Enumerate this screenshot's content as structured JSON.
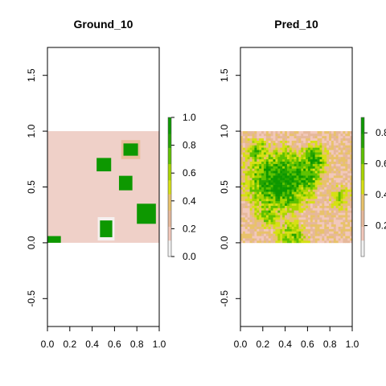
{
  "chart_data": [
    {
      "type": "heatmap",
      "title": "Ground_10",
      "xlabel": "",
      "ylabel": "",
      "xlim": [
        0,
        1
      ],
      "ylim": [
        -0.75,
        1.75
      ],
      "x_ticks": [
        "0.0",
        "0.2",
        "0.4",
        "0.6",
        "0.8",
        "1.0"
      ],
      "y_ticks": [
        "-0.5",
        "0.0",
        "0.5",
        "1.0",
        "1.5"
      ],
      "colorbar": {
        "range": [
          0,
          1
        ],
        "ticks": [
          "0.0",
          "0.2",
          "0.4",
          "0.6",
          "0.8",
          "1.0"
        ]
      },
      "background": {
        "x": [
          0,
          1
        ],
        "y": [
          0,
          1
        ],
        "value": 0.05
      },
      "patches": [
        {
          "x": [
            0.0,
            0.12
          ],
          "y": [
            0.0,
            0.06
          ],
          "value": 1.0
        },
        {
          "x": [
            0.45,
            0.6
          ],
          "y": [
            0.02,
            0.23
          ],
          "value": 0.0
        },
        {
          "x": [
            0.47,
            0.58
          ],
          "y": [
            0.05,
            0.2
          ],
          "value": 1.0
        },
        {
          "x": [
            0.44,
            0.57
          ],
          "y": [
            0.64,
            0.76
          ],
          "value": 1.0
        },
        {
          "x": [
            0.64,
            0.76
          ],
          "y": [
            0.47,
            0.6
          ],
          "value": 1.0
        },
        {
          "x": [
            0.66,
            0.83
          ],
          "y": [
            0.75,
            0.92
          ],
          "value": 0.3
        },
        {
          "x": [
            0.68,
            0.81
          ],
          "y": [
            0.78,
            0.89
          ],
          "value": 1.0
        },
        {
          "x": [
            0.8,
            0.97
          ],
          "y": [
            0.17,
            0.35
          ],
          "value": 1.0
        }
      ]
    },
    {
      "type": "heatmap",
      "title": "Pred_10",
      "xlabel": "",
      "ylabel": "",
      "xlim": [
        0,
        1
      ],
      "ylim": [
        -0.75,
        1.75
      ],
      "x_ticks": [
        "0.0",
        "0.2",
        "0.4",
        "0.6",
        "0.8",
        "1.0"
      ],
      "y_ticks": [
        "-0.5",
        "0.0",
        "0.5",
        "1.0",
        "1.5"
      ],
      "colorbar": {
        "range": [
          0,
          0.9
        ],
        "ticks": [
          "0.2",
          "0.4",
          "0.6",
          "0.8"
        ]
      },
      "grid_size": [
        48,
        48
      ],
      "blobs": [
        {
          "x": 0.35,
          "y": 0.55,
          "r": 0.25,
          "value": 0.85
        },
        {
          "x": 0.55,
          "y": 0.6,
          "r": 0.16,
          "value": 0.78
        },
        {
          "x": 0.65,
          "y": 0.75,
          "r": 0.12,
          "value": 0.75
        },
        {
          "x": 0.15,
          "y": 0.82,
          "r": 0.1,
          "value": 0.65
        },
        {
          "x": 0.45,
          "y": 0.05,
          "r": 0.14,
          "value": 0.6
        },
        {
          "x": 0.9,
          "y": 0.4,
          "r": 0.1,
          "value": 0.55
        },
        {
          "x": 0.25,
          "y": 0.25,
          "r": 0.12,
          "value": 0.6
        }
      ],
      "base_value": 0.25
    }
  ],
  "palette": [
    "#f1f1f1",
    "#f2c8bb",
    "#e6b89a",
    "#e8c26a",
    "#d6e014",
    "#a8d400",
    "#5ec100",
    "#24a300",
    "#0d9800"
  ]
}
